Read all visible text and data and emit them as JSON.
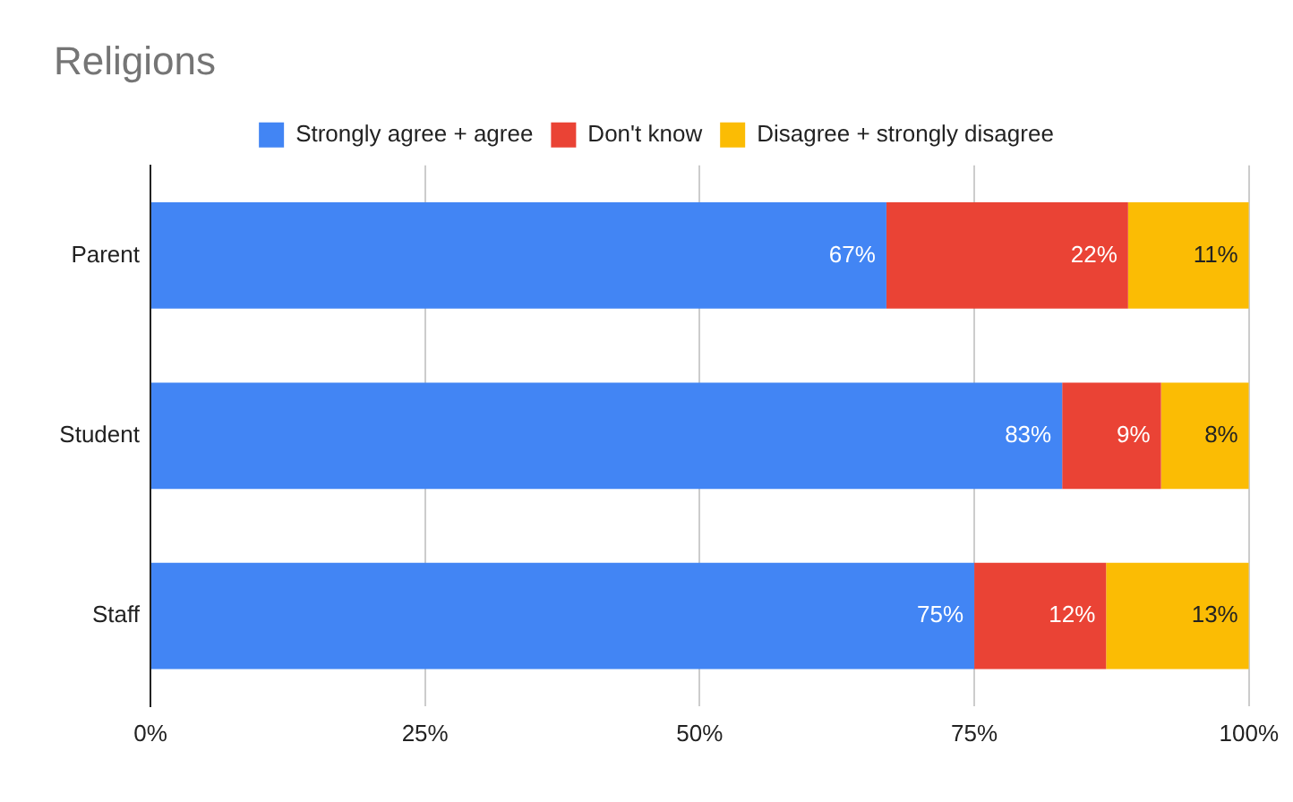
{
  "chart_data": {
    "type": "bar",
    "orientation": "horizontal",
    "stacked": true,
    "title": "Religions",
    "categories": [
      "Parent",
      "Student",
      "Staff"
    ],
    "series": [
      {
        "name": "Strongly agree + agree",
        "color": "#4285f4",
        "values": [
          67,
          83,
          75
        ],
        "value_labels": [
          "67%",
          "83%",
          "75%"
        ]
      },
      {
        "name": "Don't know",
        "color": "#ea4335",
        "values": [
          22,
          9,
          12
        ],
        "value_labels": [
          "22%",
          "9%",
          "12%"
        ]
      },
      {
        "name": "Disagree + strongly disagree",
        "color": "#fbbc04",
        "values": [
          11,
          8,
          13
        ],
        "value_labels": [
          "11%",
          "8%",
          "13%"
        ]
      }
    ],
    "xlim": [
      0,
      100
    ],
    "xticks": [
      {
        "value": 0,
        "label": "0%"
      },
      {
        "value": 25,
        "label": "25%"
      },
      {
        "value": 50,
        "label": "50%"
      },
      {
        "value": 75,
        "label": "75%"
      },
      {
        "value": 100,
        "label": "100%"
      }
    ],
    "grid": "x",
    "legend": "top"
  }
}
